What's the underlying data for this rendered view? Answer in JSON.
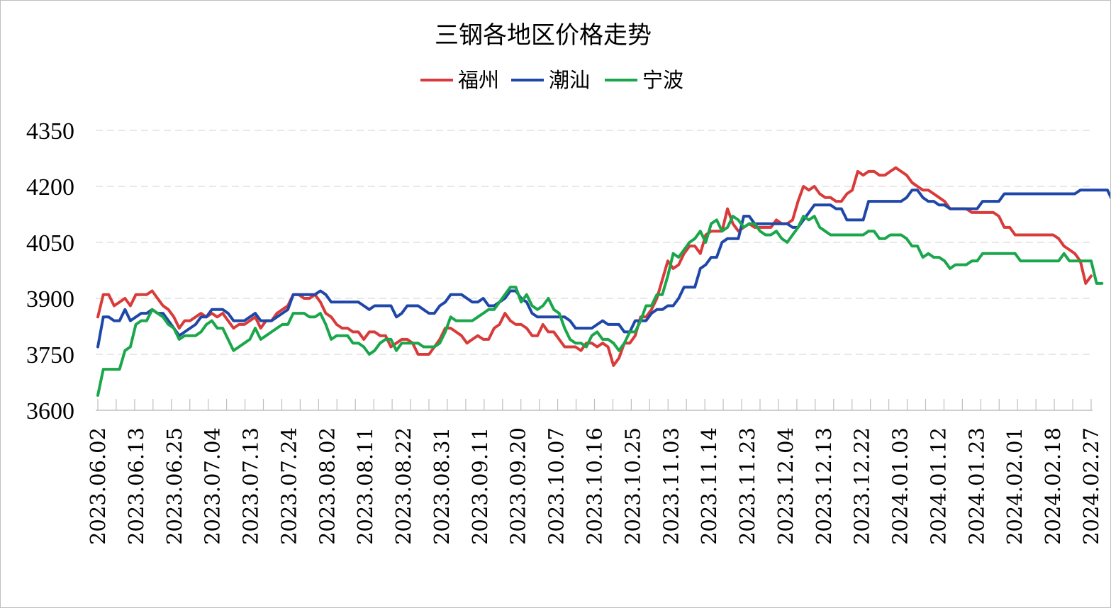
{
  "chart_data": {
    "type": "line",
    "title": "三钢各地区价格走势",
    "xlabel": "",
    "ylabel": "",
    "ylim": [
      3600,
      4350
    ],
    "yticks": [
      3600,
      3750,
      3900,
      4050,
      4200,
      4350
    ],
    "grid": true,
    "legend": "top-center",
    "x_tick_labels": [
      "2023.06.02",
      "2023.06.13",
      "2023.06.25",
      "2023.07.04",
      "2023.07.13",
      "2023.07.24",
      "2023.08.02",
      "2023.08.11",
      "2023.08.22",
      "2023.08.31",
      "2023.09.11",
      "2023.09.20",
      "2023.10.07",
      "2023.10.16",
      "2023.10.25",
      "2023.11.03",
      "2023.11.14",
      "2023.11.23",
      "2023.12.04",
      "2023.12.13",
      "2023.12.22",
      "2024.01.03",
      "2024.01.12",
      "2024.01.23",
      "2024.02.01",
      "2024.02.18",
      "2024.02.27"
    ],
    "series": [
      {
        "name": "福州",
        "color": "#d93a3a",
        "values": [
          3850,
          3910,
          3910,
          3880,
          3890,
          3900,
          3880,
          3910,
          3910,
          3910,
          3920,
          3900,
          3880,
          3870,
          3850,
          3820,
          3840,
          3840,
          3850,
          3860,
          3850,
          3860,
          3850,
          3860,
          3840,
          3820,
          3830,
          3830,
          3840,
          3850,
          3820,
          3840,
          3840,
          3860,
          3870,
          3880,
          3910,
          3910,
          3900,
          3900,
          3910,
          3890,
          3860,
          3850,
          3830,
          3820,
          3820,
          3810,
          3810,
          3790,
          3810,
          3810,
          3800,
          3800,
          3770,
          3780,
          3790,
          3790,
          3780,
          3750,
          3750,
          3750,
          3770,
          3790,
          3820,
          3820,
          3810,
          3800,
          3780,
          3790,
          3800,
          3790,
          3790,
          3820,
          3830,
          3860,
          3840,
          3830,
          3830,
          3820,
          3800,
          3800,
          3830,
          3810,
          3810,
          3790,
          3770,
          3770,
          3770,
          3760,
          3780,
          3780,
          3770,
          3780,
          3770,
          3720,
          3740,
          3780,
          3780,
          3800,
          3850,
          3850,
          3870,
          3900,
          3950,
          4000,
          3980,
          3990,
          4020,
          4040,
          4040,
          4020,
          4070,
          4080,
          4080,
          4080,
          4140,
          4100,
          4080,
          4090,
          4100,
          4090,
          4090,
          4090,
          4090,
          4110,
          4100,
          4100,
          4110,
          4160,
          4200,
          4190,
          4200,
          4180,
          4170,
          4170,
          4160,
          4160,
          4180,
          4190,
          4240,
          4230,
          4240,
          4240,
          4230,
          4230,
          4240,
          4250,
          4240,
          4230,
          4210,
          4200,
          4190,
          4190,
          4180,
          4170,
          4160,
          4140,
          4140,
          4140,
          4140,
          4130,
          4130,
          4130,
          4130,
          4130,
          4120,
          4090,
          4090,
          4070,
          4070,
          4070,
          4070,
          4070,
          4070,
          4070,
          4070,
          4060,
          4040,
          4030,
          4020,
          4000,
          3940,
          3960
        ]
      },
      {
        "name": "潮汕",
        "color": "#1f47a8",
        "values": [
          3770,
          3850,
          3850,
          3840,
          3840,
          3870,
          3840,
          3850,
          3860,
          3860,
          3870,
          3860,
          3860,
          3840,
          3820,
          3800,
          3810,
          3820,
          3830,
          3850,
          3850,
          3870,
          3870,
          3870,
          3860,
          3840,
          3840,
          3840,
          3850,
          3860,
          3840,
          3840,
          3840,
          3850,
          3860,
          3870,
          3910,
          3910,
          3910,
          3910,
          3910,
          3920,
          3910,
          3890,
          3890,
          3890,
          3890,
          3890,
          3890,
          3880,
          3870,
          3880,
          3880,
          3880,
          3880,
          3850,
          3860,
          3880,
          3880,
          3880,
          3870,
          3860,
          3860,
          3880,
          3890,
          3910,
          3910,
          3910,
          3900,
          3890,
          3890,
          3900,
          3880,
          3880,
          3890,
          3900,
          3920,
          3920,
          3900,
          3890,
          3860,
          3850,
          3850,
          3850,
          3850,
          3850,
          3850,
          3840,
          3820,
          3820,
          3820,
          3820,
          3830,
          3840,
          3830,
          3830,
          3830,
          3810,
          3810,
          3840,
          3840,
          3840,
          3860,
          3870,
          3870,
          3880,
          3880,
          3900,
          3930,
          3930,
          3930,
          3980,
          3990,
          4010,
          4010,
          4050,
          4060,
          4060,
          4060,
          4120,
          4120,
          4100,
          4100,
          4100,
          4100,
          4100,
          4100,
          4100,
          4090,
          4090,
          4110,
          4130,
          4150,
          4150,
          4150,
          4150,
          4140,
          4140,
          4110,
          4110,
          4110,
          4110,
          4160,
          4160,
          4160,
          4160,
          4160,
          4160,
          4160,
          4170,
          4190,
          4190,
          4170,
          4160,
          4160,
          4150,
          4150,
          4140,
          4140,
          4140,
          4140,
          4140,
          4140,
          4160,
          4160,
          4160,
          4160,
          4180,
          4180,
          4180,
          4180,
          4180,
          4180,
          4180,
          4180,
          4180,
          4180,
          4180,
          4180,
          4180,
          4180,
          4190,
          4190,
          4190,
          4190,
          4190,
          4190,
          4160,
          4160
        ]
      },
      {
        "name": "宁波",
        "color": "#1aa64a",
        "values": [
          3640,
          3710,
          3710,
          3710,
          3710,
          3760,
          3770,
          3830,
          3840,
          3840,
          3870,
          3860,
          3850,
          3830,
          3820,
          3790,
          3800,
          3800,
          3800,
          3810,
          3830,
          3840,
          3820,
          3820,
          3790,
          3760,
          3770,
          3780,
          3790,
          3820,
          3790,
          3800,
          3810,
          3820,
          3830,
          3830,
          3860,
          3860,
          3860,
          3850,
          3850,
          3860,
          3830,
          3790,
          3800,
          3800,
          3800,
          3780,
          3780,
          3770,
          3750,
          3760,
          3780,
          3790,
          3790,
          3760,
          3780,
          3780,
          3780,
          3780,
          3770,
          3770,
          3770,
          3780,
          3810,
          3850,
          3840,
          3840,
          3840,
          3840,
          3850,
          3860,
          3870,
          3870,
          3890,
          3910,
          3930,
          3930,
          3890,
          3910,
          3880,
          3870,
          3880,
          3900,
          3870,
          3860,
          3820,
          3790,
          3780,
          3780,
          3770,
          3800,
          3810,
          3790,
          3790,
          3780,
          3760,
          3780,
          3810,
          3810,
          3840,
          3880,
          3880,
          3910,
          3910,
          3960,
          4020,
          4010,
          4030,
          4050,
          4060,
          4080,
          4050,
          4100,
          4110,
          4080,
          4090,
          4120,
          4110,
          4090,
          4100,
          4100,
          4080,
          4070,
          4070,
          4080,
          4060,
          4050,
          4070,
          4090,
          4120,
          4110,
          4120,
          4090,
          4080,
          4070,
          4070,
          4070,
          4070,
          4070,
          4070,
          4070,
          4080,
          4080,
          4060,
          4060,
          4070,
          4070,
          4070,
          4060,
          4040,
          4040,
          4010,
          4020,
          4010,
          4010,
          4000,
          3980,
          3990,
          3990,
          3990,
          4000,
          4000,
          4020,
          4020,
          4020,
          4020,
          4020,
          4020,
          4020,
          4000,
          4000,
          4000,
          4000,
          4000,
          4000,
          4000,
          4000,
          4020,
          4000,
          4000,
          4000,
          4000,
          4000,
          3940,
          3940
        ]
      }
    ]
  }
}
